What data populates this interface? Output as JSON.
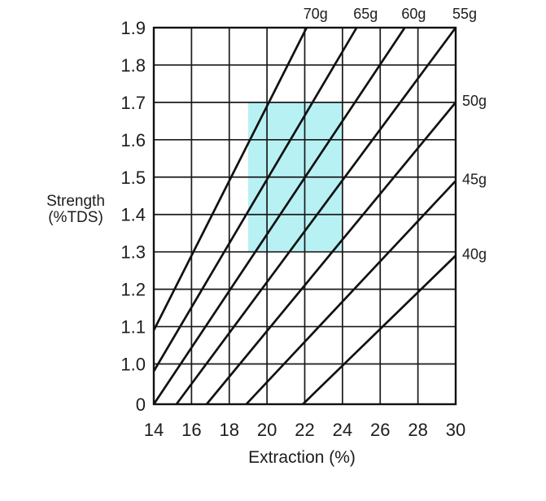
{
  "colors": {
    "background": "#ffffff",
    "grid": "#1a1a1a",
    "border": "#111111",
    "dose_line": "#111111",
    "text": "#1d1d1f",
    "ideal_zone_fill": "#b8f1f4"
  },
  "chart_data": {
    "type": "line",
    "xlabel": "Extraction (%)",
    "ylabel": [
      "Strength",
      "(%TDS)"
    ],
    "grid": true,
    "legend_position": "none",
    "x_axis": {
      "min": 14,
      "max": 30,
      "ticks": [
        {
          "v": 14,
          "label": "14"
        },
        {
          "v": 16,
          "label": "16"
        },
        {
          "v": 18,
          "label": "18"
        },
        {
          "v": 20,
          "label": "20"
        },
        {
          "v": 22,
          "label": "22"
        },
        {
          "v": 24,
          "label": "24"
        },
        {
          "v": 26,
          "label": "26"
        },
        {
          "v": 28,
          "label": "28"
        },
        {
          "v": 30,
          "label": "30"
        }
      ]
    },
    "y_axis": {
      "min": 0,
      "max": 1.9,
      "broken_below": 1.0,
      "ticks": [
        {
          "v": 0,
          "label": "0"
        },
        {
          "v": 1.0,
          "label": "1.0"
        },
        {
          "v": 1.1,
          "label": "1.1"
        },
        {
          "v": 1.2,
          "label": "1.2"
        },
        {
          "v": 1.3,
          "label": "1.3"
        },
        {
          "v": 1.4,
          "label": "1.4"
        },
        {
          "v": 1.5,
          "label": "1.5"
        },
        {
          "v": 1.6,
          "label": "1.6"
        },
        {
          "v": 1.7,
          "label": "1.7"
        },
        {
          "v": 1.8,
          "label": "1.8"
        },
        {
          "v": 1.9,
          "label": "1.9"
        }
      ]
    },
    "ideal_zone": {
      "x_range": [
        19,
        24
      ],
      "y_range": [
        1.3,
        1.7
      ]
    },
    "series": [
      {
        "name": "70g",
        "label_side": "top",
        "points": [
          [
            14,
            1.09
          ],
          [
            22.1,
            1.9
          ]
        ]
      },
      {
        "name": "65g",
        "label_side": "top",
        "points": [
          [
            14,
            0.82
          ],
          [
            24.75,
            1.9
          ]
        ]
      },
      {
        "name": "60g",
        "label_side": "top",
        "points": [
          [
            14,
            0.0
          ],
          [
            27.3,
            1.9
          ]
        ]
      },
      {
        "name": "55g",
        "label_side": "top",
        "points": [
          [
            15.2,
            0.0
          ],
          [
            30,
            1.9
          ]
        ]
      },
      {
        "name": "50g",
        "label_side": "right",
        "points": [
          [
            16.8,
            0.0
          ],
          [
            30,
            1.7
          ]
        ]
      },
      {
        "name": "45g",
        "label_side": "right",
        "points": [
          [
            18.9,
            0.0
          ],
          [
            30,
            1.49
          ]
        ]
      },
      {
        "name": "40g",
        "label_side": "right",
        "points": [
          [
            21.9,
            0.0
          ],
          [
            30,
            1.29
          ]
        ]
      }
    ]
  }
}
